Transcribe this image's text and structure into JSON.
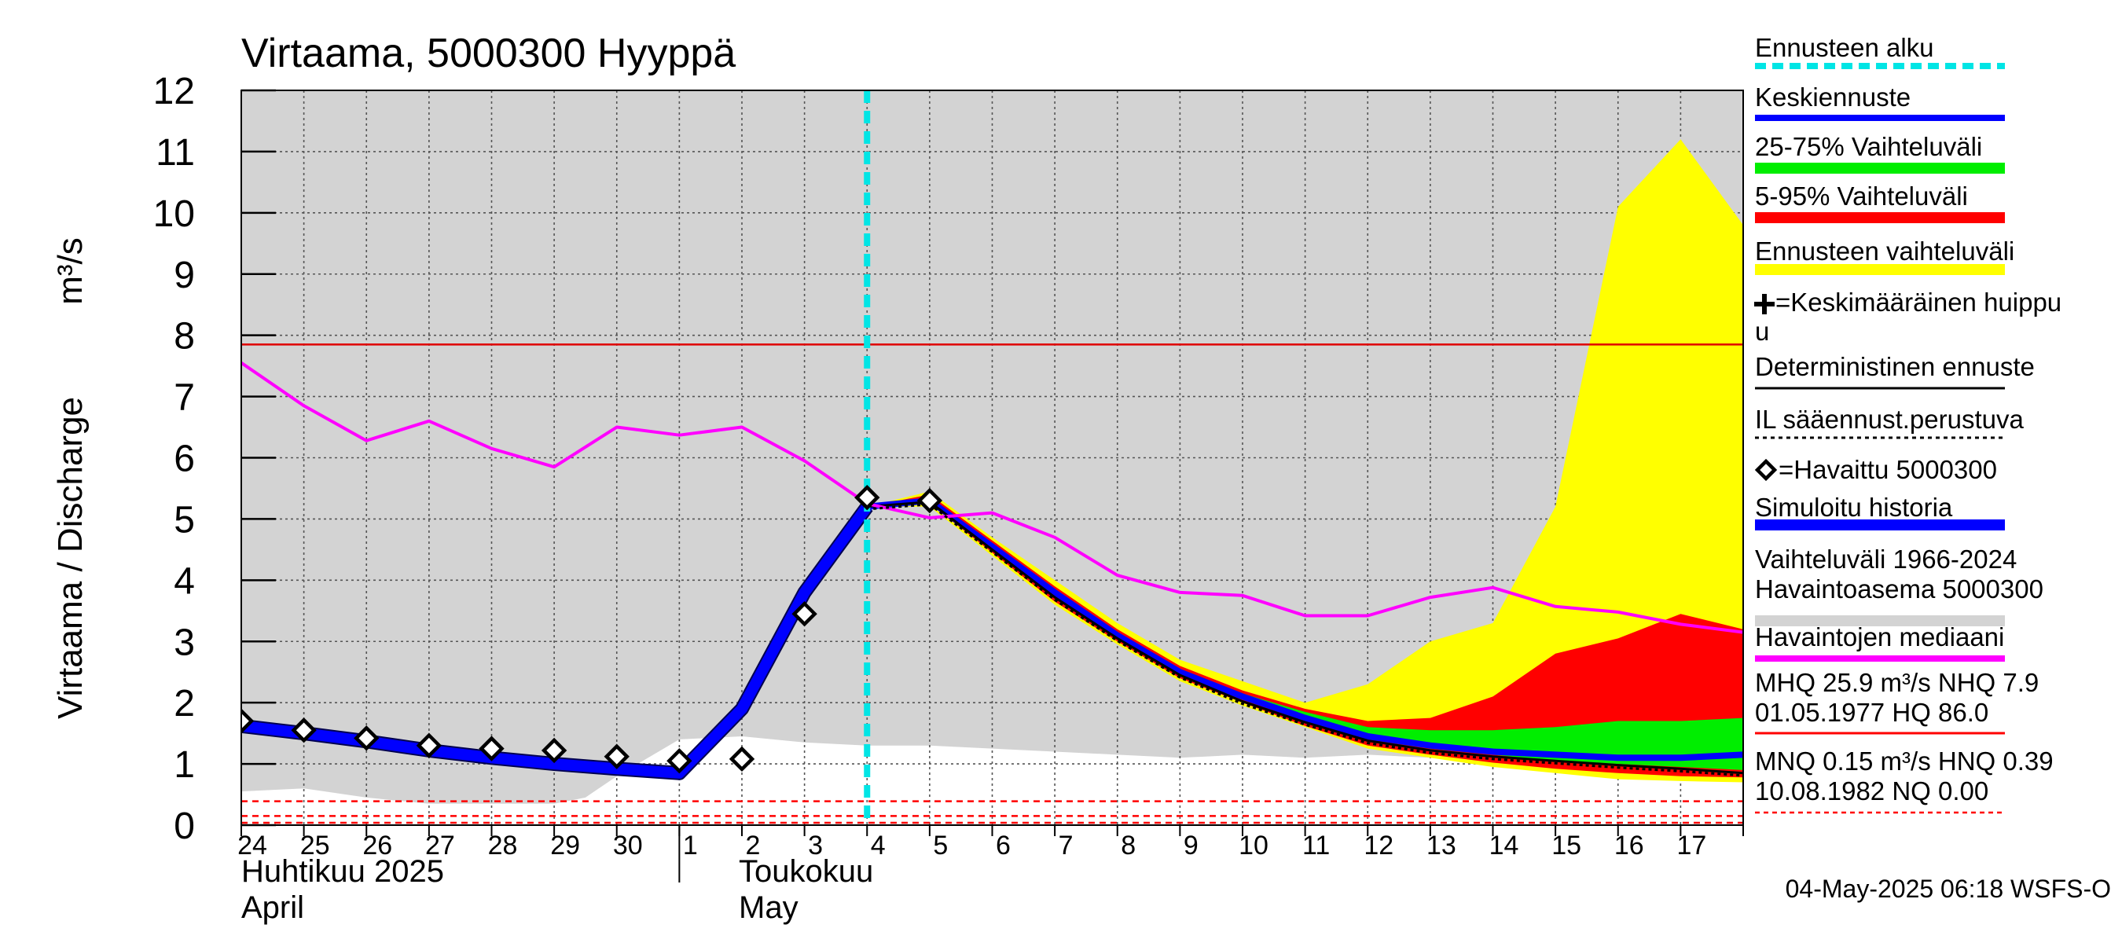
{
  "chart_data": {
    "type": "area",
    "title": "Virtaama, 5000300 Hyyppä",
    "ylabel": "Virtaama / Discharge",
    "yunit": "m³/s",
    "ylim": [
      0,
      12
    ],
    "yticks": [
      "0",
      "1",
      "2",
      "3",
      "4",
      "5",
      "6",
      "7",
      "8",
      "9",
      "10",
      "11",
      "12"
    ],
    "x_day_range": [
      0,
      24
    ],
    "x_tick_labels": [
      "24",
      "25",
      "26",
      "27",
      "28",
      "29",
      "30",
      "1",
      "2",
      "3",
      "4",
      "5",
      "6",
      "7",
      "8",
      "9",
      "10",
      "11",
      "12",
      "13",
      "14",
      "15",
      "16",
      "17"
    ],
    "month_labels": [
      {
        "line1": "Huhtikuu  2025",
        "line2": "April"
      },
      {
        "line1": "Toukokuu",
        "line2": "May"
      }
    ],
    "forecast_start_day": 10.0,
    "reference_lines": {
      "mhq": 7.85,
      "mnq": 0.15,
      "hnq": 0.39,
      "nq": 0.0
    },
    "historical_range": {
      "x": [
        0,
        1,
        2,
        3,
        4,
        5,
        5.5,
        6,
        7,
        8,
        9,
        10,
        11,
        12,
        13,
        14,
        15,
        16,
        17,
        18,
        19,
        20,
        21,
        22,
        23,
        24
      ],
      "upper": [
        12,
        12,
        12,
        12,
        12,
        12,
        12,
        12,
        12,
        12,
        12,
        12,
        12,
        12,
        12,
        12,
        12,
        12,
        12,
        12,
        12,
        12,
        12,
        12,
        12,
        12
      ],
      "lower": [
        0.55,
        0.6,
        0.45,
        0.35,
        0.35,
        0.35,
        0.45,
        0.8,
        1.4,
        1.45,
        1.35,
        1.3,
        1.3,
        1.25,
        1.2,
        1.15,
        1.1,
        1.15,
        1.1,
        1.15,
        1.1,
        1.1,
        1.1,
        1.05,
        1.0,
        0.95
      ]
    },
    "forecast_envelope": {
      "x": [
        10,
        11,
        12,
        13,
        14,
        15,
        16,
        17,
        18,
        19,
        20,
        21,
        22,
        23,
        24
      ],
      "upper": [
        5.2,
        5.45,
        4.7,
        4.0,
        3.3,
        2.7,
        2.35,
        2.0,
        2.3,
        3.0,
        3.3,
        5.2,
        10.1,
        11.2,
        9.8
      ],
      "lower": [
        5.2,
        5.2,
        4.4,
        3.6,
        2.95,
        2.35,
        1.95,
        1.6,
        1.25,
        1.1,
        0.95,
        0.85,
        0.75,
        0.72,
        0.7
      ]
    },
    "p5_95": {
      "x": [
        10,
        11,
        12,
        13,
        14,
        15,
        16,
        17,
        18,
        19,
        20,
        21,
        22,
        23,
        24
      ],
      "upper": [
        5.2,
        5.4,
        4.65,
        3.9,
        3.2,
        2.6,
        2.2,
        1.9,
        1.7,
        1.75,
        2.1,
        2.8,
        3.05,
        3.45,
        3.2
      ],
      "lower": [
        5.2,
        5.25,
        4.45,
        3.65,
        3.0,
        2.4,
        2.0,
        1.62,
        1.3,
        1.15,
        1.02,
        0.92,
        0.85,
        0.8,
        0.78
      ]
    },
    "p25_75": {
      "x": [
        10,
        11,
        12,
        13,
        14,
        15,
        16,
        17,
        18,
        19,
        20,
        21,
        22,
        23,
        24
      ],
      "upper": [
        5.2,
        5.35,
        4.6,
        3.85,
        3.15,
        2.55,
        2.15,
        1.85,
        1.6,
        1.55,
        1.55,
        1.6,
        1.7,
        1.7,
        1.75
      ],
      "lower": [
        5.2,
        5.28,
        4.5,
        3.7,
        3.05,
        2.45,
        2.05,
        1.7,
        1.4,
        1.25,
        1.15,
        1.05,
        1.0,
        0.95,
        0.9
      ]
    },
    "series": [
      {
        "name": "Simuloitu historia",
        "color": "#0000ff",
        "x": [
          0,
          1,
          2,
          3,
          4,
          5,
          6,
          7,
          8,
          9,
          10
        ],
        "values": [
          1.62,
          1.5,
          1.37,
          1.22,
          1.1,
          1.0,
          0.92,
          0.85,
          1.9,
          3.8,
          5.2
        ]
      },
      {
        "name": "Keskiennuste",
        "color": "#0000ff",
        "x": [
          10,
          11,
          12,
          13,
          14,
          15,
          16,
          17,
          18,
          19,
          20,
          21,
          22,
          23,
          24
        ],
        "values": [
          5.2,
          5.3,
          4.55,
          3.8,
          3.1,
          2.5,
          2.1,
          1.75,
          1.45,
          1.3,
          1.2,
          1.15,
          1.1,
          1.1,
          1.15
        ]
      },
      {
        "name": "Deterministinen ennuste",
        "color": "#000000",
        "x": [
          10,
          11,
          12,
          13,
          14,
          15,
          16,
          17,
          18,
          19,
          20,
          21,
          22,
          23,
          24
        ],
        "values": [
          5.2,
          5.28,
          4.5,
          3.72,
          3.05,
          2.45,
          2.02,
          1.68,
          1.38,
          1.22,
          1.12,
          1.05,
          0.98,
          0.92,
          0.85
        ]
      },
      {
        "name": "Havaintojen mediaani",
        "color": "#ff00ff",
        "x": [
          0,
          1,
          2,
          3,
          4,
          5,
          6,
          7,
          8,
          9,
          10,
          11,
          12,
          13,
          14,
          15,
          16,
          17,
          18,
          19,
          20,
          21,
          22,
          23,
          24
        ],
        "values": [
          7.55,
          6.85,
          6.28,
          6.6,
          6.15,
          5.85,
          6.5,
          6.37,
          6.5,
          5.95,
          5.25,
          5.02,
          5.1,
          4.7,
          4.08,
          3.8,
          3.75,
          3.42,
          3.42,
          3.72,
          3.88,
          3.57,
          3.48,
          3.28,
          3.15
        ]
      }
    ],
    "observed": {
      "name": "Havaittu 5000300",
      "x": [
        0,
        1,
        2,
        3,
        4,
        5,
        6,
        7,
        8,
        9,
        10,
        11
      ],
      "values": [
        1.7,
        1.55,
        1.42,
        1.3,
        1.25,
        1.22,
        1.12,
        1.05,
        1.08,
        3.45,
        5.35,
        5.3
      ]
    },
    "legend": [
      {
        "label": "Ennusteen alku",
        "color": "#00e5e5",
        "style": "dash-thick"
      },
      {
        "label": "Keskiennuste",
        "color": "#0000ff",
        "style": "line"
      },
      {
        "label": "25-75% Vaihteluväli",
        "color": "#00ee00",
        "style": "band"
      },
      {
        "label": "5-95% Vaihteluväli",
        "color": "#ff0000",
        "style": "band"
      },
      {
        "label": "Ennusteen vaihteluväli",
        "color": "#ffff00",
        "style": "band"
      },
      {
        "label": "=Keskimääräinen huippu",
        "color": "#000000",
        "style": "plus"
      },
      {
        "label": "Deterministinen ennuste",
        "color": "#000000",
        "style": "thin"
      },
      {
        "label": "IL sääennust.perustuva",
        "color": "#000000",
        "style": "dotted"
      },
      {
        "label": "=Havaittu 5000300",
        "color": "#000000",
        "style": "diamond"
      },
      {
        "label": "Simuloitu historia",
        "color": "#0000ff",
        "style": "band"
      },
      {
        "label": "Vaihteluväli 1966-2024",
        "label2": " Havaintoasema 5000300",
        "color": "#d3d3d3",
        "style": "band"
      },
      {
        "label": "Havaintojen mediaani",
        "color": "#ff00ff",
        "style": "line"
      },
      {
        "label": "MHQ 25.9 m³/s NHQ  7.9",
        "label2": "01.05.1977 HQ 86.0",
        "color": "#ff0000",
        "style": "thin"
      },
      {
        "label": "MNQ 0.15 m³/s HNQ 0.39",
        "label2": "10.08.1982 NQ 0.00",
        "color": "#ff0000",
        "style": "dashed"
      }
    ]
  },
  "footer": {
    "timestamp": "04-May-2025 06:18 WSFS-O"
  }
}
